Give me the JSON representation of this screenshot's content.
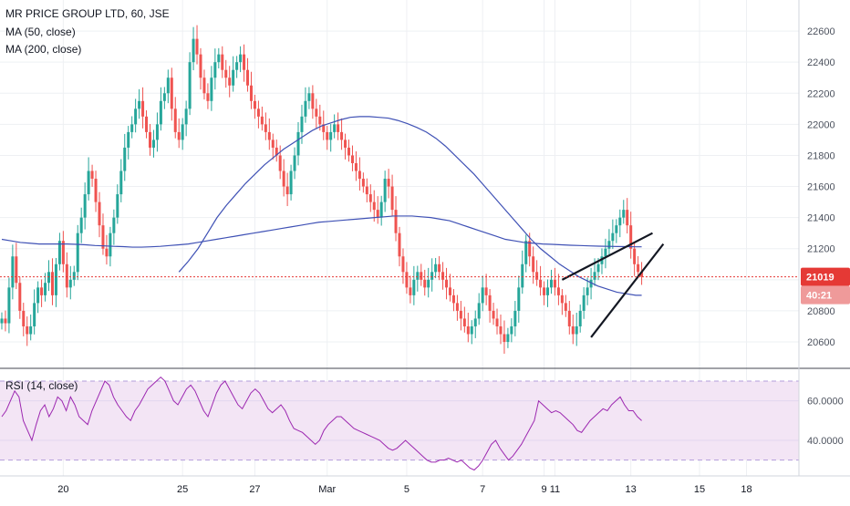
{
  "header": {
    "title": "MR PRICE GROUP LTD, 60, JSE",
    "ma50_label": "MA (50, close)",
    "ma200_label": "MA (200, close)",
    "rsi_label": "RSI (14, close)"
  },
  "price_badges": {
    "last_price": "21019",
    "countdown": "40:21"
  },
  "colors": {
    "up": "#26a69a",
    "down": "#ef5350",
    "ma": "#3f51b5",
    "rsi_line": "#9c27b0",
    "rsi_band": "#f3e5f5",
    "last_price": "#e53935"
  },
  "chart_data": [
    {
      "type": "candlestick",
      "title": "MR PRICE GROUP LTD, 60, JSE",
      "ylim": [
        20430,
        22800
      ],
      "y_ticks": [
        20600,
        20800,
        21000,
        21200,
        21400,
        21600,
        21800,
        22000,
        22200,
        22400,
        22600
      ],
      "x_ticks": [
        {
          "label": "20",
          "bar": 17
        },
        {
          "label": "25",
          "bar": 50
        },
        {
          "label": "27",
          "bar": 70
        },
        {
          "label": "Mar",
          "bar": 90
        },
        {
          "label": "5",
          "bar": 112
        },
        {
          "label": "7",
          "bar": 133
        },
        {
          "label": "9",
          "bar": 150
        },
        {
          "label": "11",
          "bar": 153
        },
        {
          "label": "13",
          "bar": 174
        },
        {
          "label": "15",
          "bar": 193
        },
        {
          "label": "18",
          "bar": 206
        }
      ],
      "grid": true,
      "last_price": 21019,
      "closes": [
        20750,
        20720,
        20950,
        21150,
        20980,
        20800,
        20700,
        20650,
        20700,
        20850,
        20950,
        20900,
        20980,
        21050,
        20900,
        21100,
        21250,
        21100,
        20950,
        21000,
        21050,
        21300,
        21400,
        21550,
        21700,
        21650,
        21500,
        21350,
        21200,
        21150,
        21300,
        21400,
        21550,
        21700,
        21850,
        21950,
        22000,
        22100,
        22150,
        22050,
        21950,
        21850,
        21900,
        22000,
        22150,
        22200,
        22300,
        22100,
        21950,
        21900,
        22000,
        22100,
        22400,
        22550,
        22450,
        22300,
        22200,
        22150,
        22300,
        22400,
        22450,
        22350,
        22300,
        22250,
        22350,
        22400,
        22450,
        22350,
        22250,
        22150,
        22100,
        22050,
        22000,
        21950,
        21900,
        21850,
        21800,
        21700,
        21600,
        21550,
        21700,
        21800,
        21950,
        22050,
        22150,
        22200,
        22100,
        22050,
        22000,
        21950,
        21900,
        21950,
        22000,
        21950,
        21900,
        21850,
        21800,
        21750,
        21700,
        21650,
        21600,
        21550,
        21500,
        21450,
        21400,
        21500,
        21650,
        21600,
        21450,
        21300,
        21150,
        21050,
        20950,
        20900,
        21000,
        21050,
        21000,
        20950,
        21000,
        21050,
        21100,
        21050,
        21000,
        20950,
        20900,
        20850,
        20800,
        20750,
        20700,
        20650,
        20700,
        20750,
        20850,
        20950,
        20900,
        20800,
        20750,
        20700,
        20650,
        20600,
        20650,
        20700,
        20800,
        20950,
        21100,
        21250,
        21150,
        21050,
        21000,
        20950,
        20900,
        20950,
        21000,
        20950,
        20900,
        20850,
        20800,
        20700,
        20650,
        20700,
        20800,
        20900,
        20950,
        21000,
        21050,
        21100,
        21150,
        21200,
        21250,
        21300,
        21350,
        21400,
        21450,
        21350,
        21200,
        21100,
        21050,
        21019
      ],
      "ma50": {
        "name": "MA (50, close)",
        "values_from_bar": 49,
        "values": [
          21050,
          21120,
          21200,
          21300,
          21400,
          21480,
          21550,
          21620,
          21680,
          21740,
          21790,
          21840,
          21880,
          21920,
          21960,
          21990,
          22010,
          22030,
          22045,
          22050,
          22050,
          22045,
          22040,
          22025,
          22005,
          21980,
          21950,
          21910,
          21860,
          21800,
          21740,
          21680,
          21610,
          21540,
          21470,
          21400,
          21330,
          21260,
          21200,
          21150,
          21100,
          21060,
          21020,
          20990,
          20960,
          20940,
          20920,
          20910,
          20900,
          20900
        ]
      },
      "ma200": {
        "name": "MA (200, close)",
        "values": [
          21260,
          21250,
          21240,
          21235,
          21230,
          21230,
          21230,
          21230,
          21228,
          21225,
          21220,
          21218,
          21215,
          21213,
          21210,
          21210,
          21212,
          21215,
          21220,
          21225,
          21230,
          21240,
          21250,
          21260,
          21270,
          21280,
          21290,
          21300,
          21310,
          21320,
          21330,
          21340,
          21350,
          21360,
          21370,
          21375,
          21380,
          21385,
          21390,
          21395,
          21400,
          21405,
          21410,
          21410,
          21410,
          21405,
          21400,
          21390,
          21380,
          21360,
          21340,
          21320,
          21300,
          21280,
          21260,
          21250,
          21240,
          21235,
          21230,
          21228,
          21225,
          21222,
          21220,
          21218,
          21216,
          21215,
          21214,
          21213,
          21212,
          21212
        ]
      },
      "wedge_lines": [
        {
          "from": {
            "bar": 155,
            "price": 21000
          },
          "to": {
            "bar": 180,
            "price": 21300
          }
        },
        {
          "from": {
            "bar": 163,
            "price": 20630
          },
          "to": {
            "bar": 183,
            "price": 21230
          }
        }
      ]
    },
    {
      "type": "line",
      "title": "RSI (14, close)",
      "ylim": [
        22,
        76
      ],
      "y_ticks": [
        40,
        60
      ],
      "y_tick_labels": [
        "40.0000",
        "60.0000"
      ],
      "bands": [
        30,
        70
      ],
      "series": [
        {
          "name": "RSI (14, close)",
          "values": [
            52,
            55,
            60,
            65,
            62,
            50,
            45,
            40,
            48,
            55,
            58,
            52,
            56,
            62,
            60,
            55,
            62,
            58,
            52,
            50,
            48,
            55,
            60,
            65,
            70,
            68,
            62,
            58,
            55,
            52,
            50,
            55,
            58,
            62,
            66,
            68,
            70,
            72,
            70,
            65,
            60,
            58,
            62,
            66,
            68,
            65,
            60,
            55,
            52,
            58,
            64,
            68,
            70,
            66,
            62,
            58,
            56,
            60,
            64,
            66,
            64,
            60,
            56,
            54,
            56,
            58,
            55,
            50,
            46,
            45,
            44,
            42,
            40,
            38,
            40,
            45,
            48,
            50,
            52,
            52,
            50,
            48,
            46,
            45,
            44,
            43,
            42,
            41,
            40,
            38,
            36,
            35,
            36,
            38,
            40,
            38,
            36,
            34,
            32,
            30,
            29,
            29,
            30,
            30,
            31,
            30,
            29,
            30,
            28,
            26,
            25,
            27,
            30,
            34,
            38,
            40,
            36,
            33,
            30,
            32,
            35,
            38,
            42,
            46,
            50,
            60,
            58,
            56,
            54,
            55,
            54,
            52,
            50,
            48,
            45,
            44,
            47,
            50,
            52,
            54,
            56,
            55,
            58,
            60,
            62,
            58,
            55,
            55,
            52,
            50
          ]
        }
      ]
    }
  ]
}
